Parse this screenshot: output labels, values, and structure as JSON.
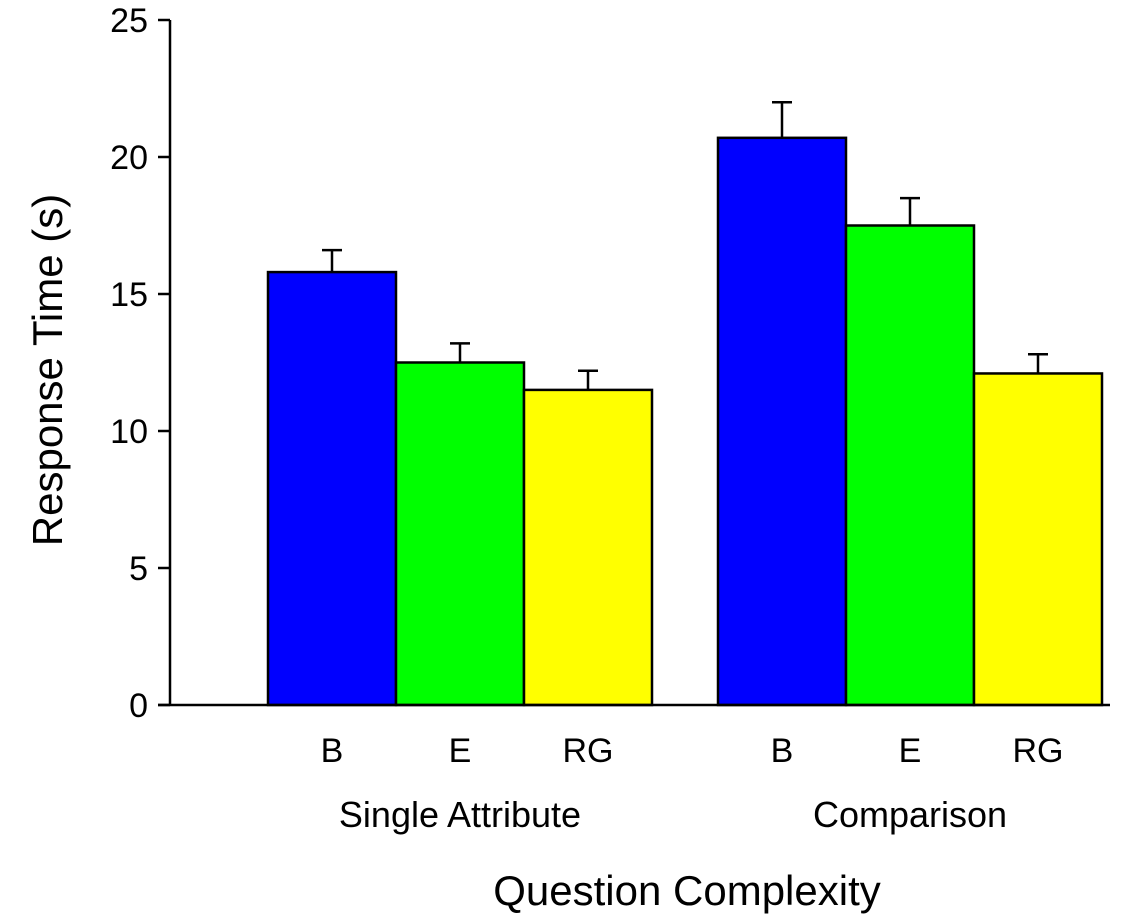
{
  "chart_data": {
    "type": "bar",
    "title": "",
    "xlabel": "Question Complexity",
    "ylabel": "Response Time (s)",
    "ylim": [
      0,
      25
    ],
    "yticks": [
      0,
      5,
      10,
      15,
      20,
      25
    ],
    "grid": false,
    "legend": "none",
    "groups": [
      {
        "label": "Single Attribute",
        "bars": [
          {
            "category": "B",
            "value": 15.8,
            "error": 0.8,
            "color": "#0000ff"
          },
          {
            "category": "E",
            "value": 12.5,
            "error": 0.7,
            "color": "#00ff00"
          },
          {
            "category": "RG",
            "value": 11.5,
            "error": 0.7,
            "color": "#ffff00"
          }
        ]
      },
      {
        "label": "Comparison",
        "bars": [
          {
            "category": "B",
            "value": 20.7,
            "error": 1.3,
            "color": "#0000ff"
          },
          {
            "category": "E",
            "value": 17.5,
            "error": 1.0,
            "color": "#00ff00"
          },
          {
            "category": "RG",
            "value": 12.1,
            "error": 0.7,
            "color": "#ffff00"
          }
        ]
      }
    ]
  }
}
